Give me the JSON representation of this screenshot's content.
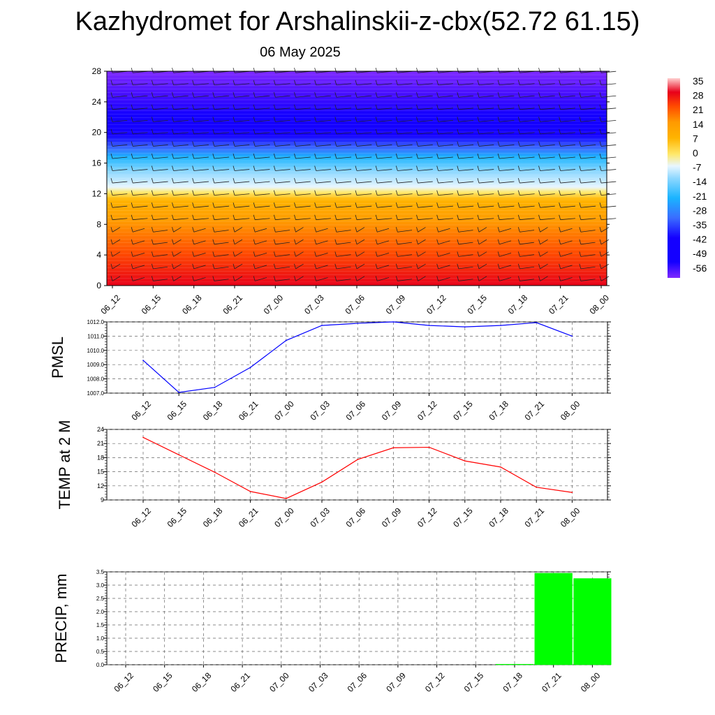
{
  "title": "Kazhydromet for Arshalinskii-z-cbx(52.72 61.15)",
  "subtitle": "06 May 2025",
  "time_labels": [
    "06_12",
    "06_15",
    "06_18",
    "06_21",
    "07_00",
    "07_03",
    "07_06",
    "07_09",
    "07_12",
    "07_15",
    "07_18",
    "07_21",
    "08_00"
  ],
  "chart_data": [
    {
      "type": "heatmap",
      "ylim": [
        0,
        28
      ],
      "y_ticks": [
        "0",
        "4",
        "8",
        "12",
        "16",
        "20",
        "24",
        "28"
      ],
      "colorbar_labels": [
        "35",
        "28",
        "21",
        "14",
        "7",
        "0",
        "-7",
        "-14",
        "-21",
        "-28",
        "-35",
        "-42",
        "-49",
        "-56"
      ],
      "colorbar_range": [
        -63,
        42
      ],
      "colors": {
        "hot": "#e8001a",
        "warm": "#ff9a00",
        "yellow": "#ffe86a",
        "light": "#e8f6ff",
        "cyan": "#1ab4ff",
        "blue": "#1400ff",
        "violet": "#7f2aff"
      }
    },
    {
      "type": "line",
      "ylabel": "PMSL",
      "ylim": [
        1007.0,
        1012.0
      ],
      "y_ticks": [
        "1007.0",
        "1008.0",
        "1009.0",
        "1010.0",
        "1011.0",
        "1012.0"
      ],
      "values": [
        1009.3,
        1007.05,
        1007.4,
        1008.8,
        1010.7,
        1011.75,
        1011.9,
        1012.0,
        1011.75,
        1011.65,
        1011.75,
        1011.95,
        1011.0
      ],
      "color": "#0000ff"
    },
    {
      "type": "line",
      "ylabel": "TEMP at 2 M",
      "ylim": [
        9,
        24
      ],
      "y_ticks": [
        "9",
        "12",
        "15",
        "18",
        "21",
        "24"
      ],
      "values": [
        22.3,
        18.6,
        14.9,
        10.8,
        9.3,
        12.8,
        17.6,
        20.1,
        20.2,
        17.3,
        16.0,
        11.7,
        10.6
      ],
      "color": "#ff0000"
    },
    {
      "type": "bar",
      "ylabel": "PRECIP, mm",
      "ylim": [
        0,
        3.5
      ],
      "y_ticks": [
        "0.0",
        "0.5",
        "1.0",
        "1.5",
        "2.0",
        "2.5",
        "3.0",
        "3.5"
      ],
      "values": [
        0,
        0,
        0,
        0,
        0,
        0,
        0,
        0,
        0,
        0,
        0.02,
        3.45,
        3.25
      ],
      "color": "#00ff00"
    }
  ]
}
